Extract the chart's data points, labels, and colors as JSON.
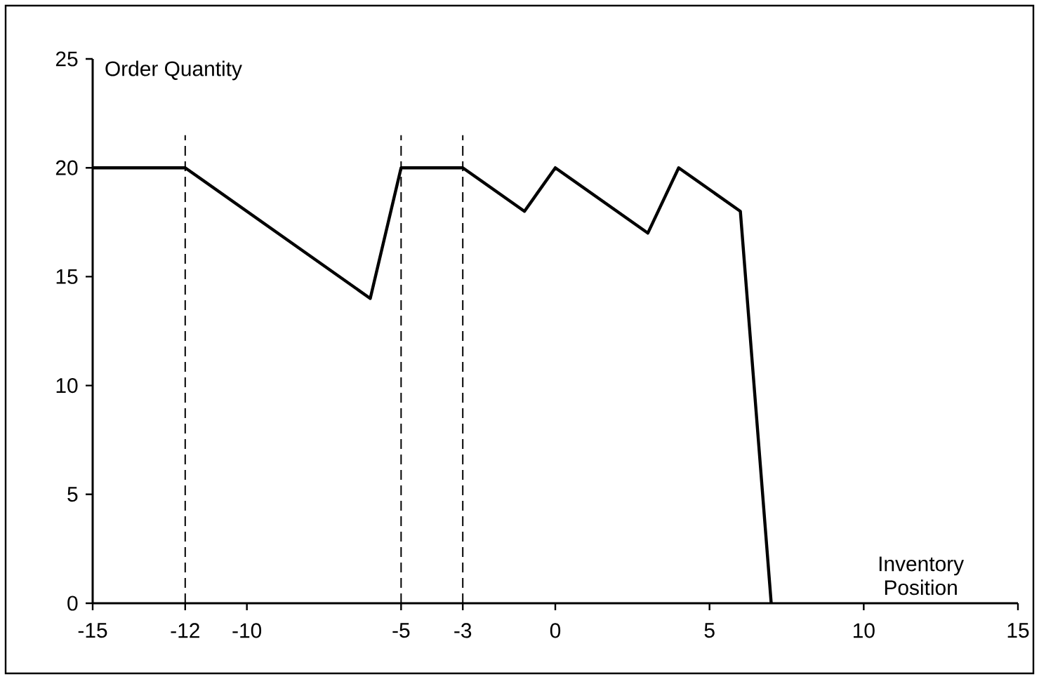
{
  "chart_data": {
    "type": "line",
    "xlabel": "Inventory Position",
    "ylabel": "Order Quantity",
    "x": [
      -15,
      -12,
      -6,
      -5,
      -3,
      -1,
      0,
      3,
      4,
      6,
      7
    ],
    "series": [
      {
        "color": "#000000",
        "values": [
          20,
          20,
          14,
          20,
          20,
          18,
          20,
          17,
          20,
          18,
          0
        ]
      }
    ],
    "xlim": [
      -15,
      15
    ],
    "xticks": [
      -15,
      -12,
      -10,
      -5,
      -3,
      0,
      5,
      10,
      15
    ],
    "ylim": [
      0,
      25
    ],
    "yticks": [
      0,
      5,
      10,
      15,
      20,
      25
    ],
    "ref_lines": [
      {
        "axis": "x",
        "value": -12,
        "line_style": "dashed"
      },
      {
        "axis": "x",
        "value": -5,
        "line_style": "dashed"
      },
      {
        "axis": "x",
        "value": -3,
        "line_style": "dashed"
      }
    ],
    "grid": false,
    "marker": "none",
    "line_style": "solid"
  }
}
